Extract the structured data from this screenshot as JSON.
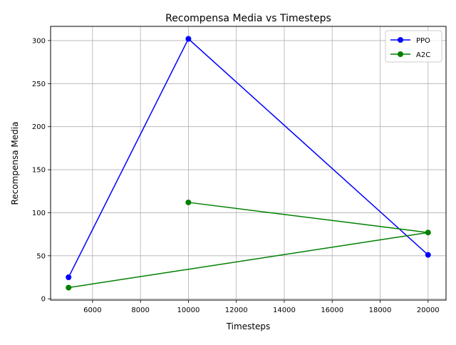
{
  "chart_data": {
    "type": "line",
    "title": "Recompensa Media vs Timesteps",
    "xlabel": "Timesteps",
    "ylabel": "Recompensa Media",
    "xlim": [
      4250,
      20750
    ],
    "ylim": [
      -1.5,
      316.5
    ],
    "xticks": [
      6000,
      8000,
      10000,
      12000,
      14000,
      16000,
      18000,
      20000
    ],
    "yticks": [
      0,
      50,
      100,
      150,
      200,
      250,
      300
    ],
    "grid": true,
    "legend_position": "top-right",
    "series": [
      {
        "name": "PPO",
        "color": "#0000ff",
        "marker": "circle",
        "x": [
          5000,
          10000,
          20000
        ],
        "y": [
          25,
          302,
          51
        ]
      },
      {
        "name": "A2C",
        "color": "#008000",
        "marker": "circle",
        "x": [
          10000,
          20000,
          5000
        ],
        "y": [
          112,
          77,
          13
        ]
      }
    ]
  }
}
